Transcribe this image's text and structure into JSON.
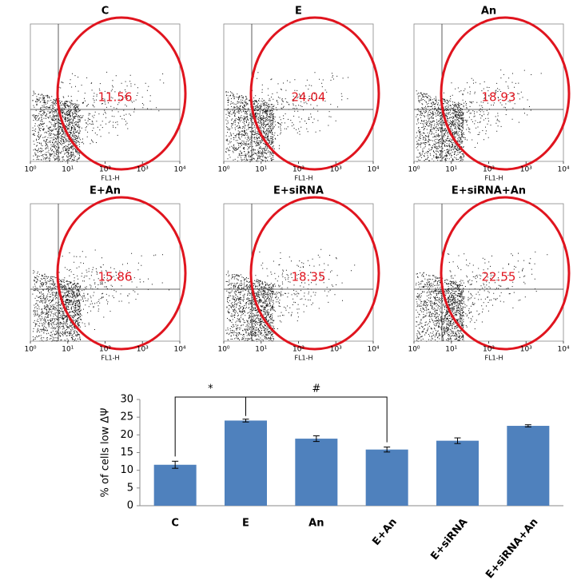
{
  "flow_panels": [
    {
      "title": "C",
      "value": 11.56
    },
    {
      "title": "E",
      "value": 24.04
    },
    {
      "title": "An",
      "value": 18.93
    },
    {
      "title": "E+An",
      "value": 15.86
    },
    {
      "title": "E+siRNA",
      "value": 18.35
    },
    {
      "title": "E+siRNA+An",
      "value": 22.55
    }
  ],
  "flow_xlabel": "FL1-H",
  "flow_xscale": "log",
  "flow_xlim": [
    1,
    10000
  ],
  "flow_xticks": [
    {
      "value": 1,
      "label": "10⁰"
    },
    {
      "value": 10,
      "label": "10¹"
    },
    {
      "value": 100,
      "label": "10²"
    },
    {
      "value": 1000,
      "label": "10³"
    },
    {
      "value": 10000,
      "label": "10⁴"
    }
  ],
  "chart_data": {
    "type": "bar",
    "ylabel": "% of cells low ΔΨ",
    "categories": [
      "C",
      "E",
      "An",
      "E+An",
      "E+siRNA",
      "E+siRNA+An"
    ],
    "values": [
      11.56,
      24.04,
      18.93,
      15.86,
      18.35,
      22.55
    ],
    "errors": [
      1.0,
      0.4,
      0.8,
      0.7,
      0.8,
      0.3
    ],
    "color": "#4f81bd",
    "ylim": [
      0,
      30
    ],
    "yticks": [
      0,
      5,
      10,
      15,
      20,
      25,
      30
    ],
    "annotations": [
      "*",
      "#"
    ]
  }
}
